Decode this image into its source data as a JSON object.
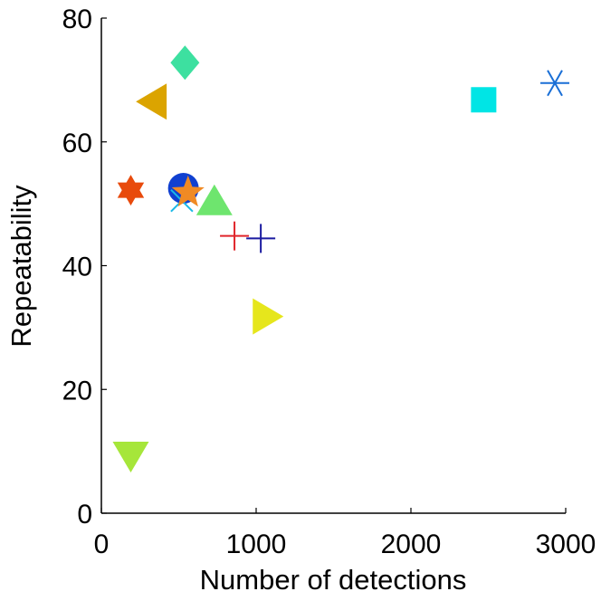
{
  "chart_data": {
    "type": "scatter",
    "xlabel": "Number of detections",
    "ylabel": "Repeatability",
    "xlim": [
      0,
      3000
    ],
    "ylim": [
      0,
      80
    ],
    "xticks": [
      0,
      1000,
      2000,
      3000
    ],
    "yticks": [
      0,
      20,
      40,
      60,
      80
    ],
    "grid": false,
    "box": "left-bottom",
    "points": [
      {
        "x": 2930,
        "y": 69.5,
        "marker": "asterisk",
        "color": "#1a6fd6"
      },
      {
        "x": 2470,
        "y": 66.8,
        "marker": "square",
        "color": "#00e5e5"
      },
      {
        "x": 540,
        "y": 72.8,
        "marker": "diamond",
        "color": "#3de0a0"
      },
      {
        "x": 340,
        "y": 66.5,
        "marker": "triangle-left",
        "color": "#dba400"
      },
      {
        "x": 190,
        "y": 52.2,
        "marker": "hexagram",
        "color": "#e84a0c"
      },
      {
        "x": 530,
        "y": 52.5,
        "marker": "circle",
        "color": "#1040d0"
      },
      {
        "x": 520,
        "y": 50.5,
        "marker": "x",
        "color": "#19b8e6"
      },
      {
        "x": 560,
        "y": 51.8,
        "marker": "pentagram",
        "color": "#f08a24"
      },
      {
        "x": 730,
        "y": 50.2,
        "marker": "triangle-up",
        "color": "#6ee56e"
      },
      {
        "x": 860,
        "y": 44.8,
        "marker": "plus",
        "color": "#e0242a"
      },
      {
        "x": 1030,
        "y": 44.4,
        "marker": "plus",
        "color": "#1a1aa0"
      },
      {
        "x": 1060,
        "y": 31.8,
        "marker": "triangle-right",
        "color": "#e6e61c"
      },
      {
        "x": 190,
        "y": 9.5,
        "marker": "triangle-down",
        "color": "#a6e63a"
      }
    ]
  }
}
